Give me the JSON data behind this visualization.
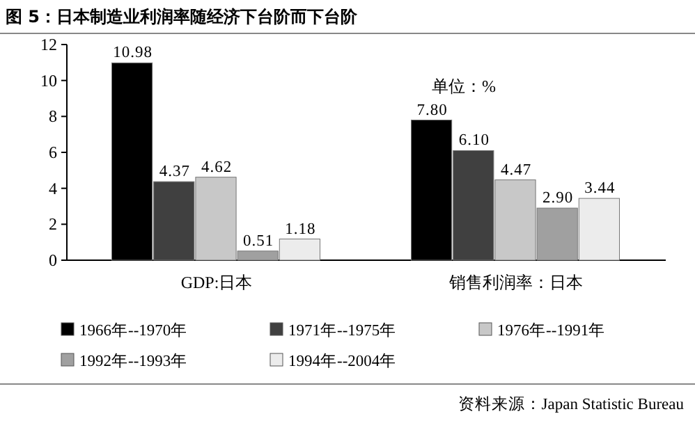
{
  "chart_data": {
    "type": "bar",
    "title": "图 5：日本制造业利润率随经济下台阶而下台阶",
    "categories": [
      "GDP:日本",
      "销售利润率：日本"
    ],
    "series": [
      {
        "name": "1966年--1970年",
        "color": "#000000",
        "values": [
          10.98,
          7.8
        ],
        "value_labels": [
          "10.98",
          "7.80"
        ]
      },
      {
        "name": "1971年--1975年",
        "color": "#404040",
        "values": [
          4.37,
          6.1
        ],
        "value_labels": [
          "4.37",
          "6.10"
        ]
      },
      {
        "name": "1976年--1991年",
        "color": "#c8c8c8",
        "values": [
          4.62,
          4.47
        ],
        "value_labels": [
          "4.62",
          "4.47"
        ]
      },
      {
        "name": "1992年--1993年",
        "color": "#a0a0a0",
        "values": [
          0.51,
          2.9
        ],
        "value_labels": [
          "0.51",
          "2.90"
        ]
      },
      {
        "name": "1994年--2004年",
        "color": "#ececec",
        "values": [
          1.18,
          3.44
        ],
        "value_labels": [
          "1.18",
          "3.44"
        ]
      }
    ],
    "ylim": [
      0,
      12
    ],
    "yticks": [
      0,
      2,
      4,
      6,
      8,
      10,
      12
    ],
    "grid": false,
    "legend": "bottom",
    "annotations": [
      "单位：%",
      "资料来源：Japan Statistic Bureau"
    ]
  }
}
